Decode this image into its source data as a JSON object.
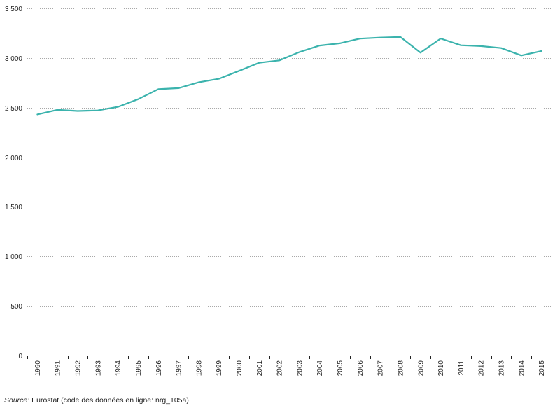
{
  "chart_data": {
    "type": "line",
    "title": "",
    "xlabel": "",
    "ylabel": "",
    "x": [
      "1990",
      "1991",
      "1992",
      "1993",
      "1994",
      "1995",
      "1996",
      "1997",
      "1998",
      "1999",
      "2000",
      "2001",
      "2002",
      "2003",
      "2004",
      "2005",
      "2006",
      "2007",
      "2008",
      "2009",
      "2010",
      "2011",
      "2012",
      "2013",
      "2014",
      "2015"
    ],
    "series": [
      {
        "values": [
          2432,
          2478,
          2466,
          2472,
          2508,
          2585,
          2686,
          2696,
          2755,
          2790,
          2870,
          2952,
          2976,
          3060,
          3125,
          3148,
          3195,
          3206,
          3212,
          3054,
          3196,
          3128,
          3120,
          3100,
          3025,
          3070
        ],
        "color": "#3bb3ad"
      }
    ],
    "ylim": [
      0,
      3500
    ],
    "yticks": [
      0,
      500,
      1000,
      1500,
      2000,
      2500,
      3000,
      3500
    ],
    "ytick_labels": [
      "0",
      "500",
      "1 000",
      "1 500",
      "2 000",
      "2 500",
      "3 000",
      "3 500"
    ],
    "grid": true,
    "grid_style": "dotted horizontal"
  },
  "source": {
    "label": "Source:",
    "text": "Eurostat (code des données en ligne: nrg_105a)"
  }
}
